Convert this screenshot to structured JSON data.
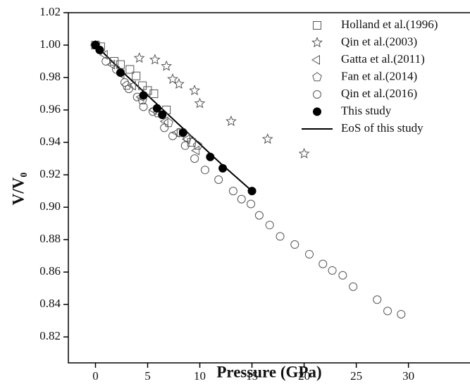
{
  "chart_data": {
    "type": "scatter",
    "xlabel": "Pressure (GPa)",
    "ylabel": "V/V₀",
    "xlim": [
      -2.6,
      35.9
    ],
    "ylim": [
      0.804,
      1.02
    ],
    "xticks": [
      0,
      5,
      10,
      15,
      20,
      25,
      30
    ],
    "yticks": [
      0.82,
      0.84,
      0.86,
      {
        "value": 0.88,
        "label": "0.88"
      },
      {
        "value": 0.9,
        "label": "0.90"
      },
      0.92,
      0.94,
      0.96,
      0.98,
      {
        "value": 1.0,
        "label": "1.00"
      },
      1.02
    ],
    "legend": "upper right",
    "series": [
      {
        "name": "Holland et al.(1996)",
        "marker": "square",
        "color": "#555555",
        "x": [
          0,
          0.5,
          1.8,
          2.4,
          3.3,
          3.9,
          4.5,
          5.0,
          5.6,
          6.8,
          8.2,
          9.2
        ],
        "values": [
          1.0,
          0.999,
          0.99,
          0.988,
          0.985,
          0.981,
          0.975,
          0.972,
          0.97,
          0.96,
          0.946,
          0.94
        ]
      },
      {
        "name": "Qin et al.(2003)",
        "marker": "star",
        "color": "#555555",
        "x": [
          4.2,
          5.7,
          6.8,
          7.4,
          8.0,
          9.5,
          10.0,
          13.0,
          16.5,
          20.0
        ],
        "values": [
          0.992,
          0.991,
          0.987,
          0.979,
          0.976,
          0.972,
          0.964,
          0.953,
          0.942,
          0.933
        ]
      },
      {
        "name": "Gatta et al.(2011)",
        "marker": "triangle-left",
        "color": "#555555",
        "x": [
          0,
          0.9,
          1.6,
          2.5,
          3.6,
          4.4,
          5.6,
          6.7,
          7.8,
          8.8,
          9.7
        ],
        "values": [
          1.0,
          0.994,
          0.988,
          0.982,
          0.975,
          0.968,
          0.96,
          0.953,
          0.946,
          0.942,
          0.935
        ]
      },
      {
        "name": "Fan et al.(2014)",
        "marker": "pentagon",
        "color": "#555555",
        "x": [
          0,
          3.0,
          4.5,
          6.0,
          7.0,
          8.8,
          9.8
        ],
        "values": [
          1.0,
          0.975,
          0.966,
          0.958,
          0.952,
          0.943,
          0.938
        ]
      },
      {
        "name": "Qin et al.(2016)",
        "marker": "circle",
        "color": "#555555",
        "x": [
          0,
          1.0,
          2.0,
          2.8,
          3.2,
          4.0,
          4.6,
          5.5,
          6.6,
          7.4,
          8.6,
          9.5,
          10.5,
          11.8,
          13.2,
          14.0,
          14.9,
          15.7,
          16.7,
          17.7,
          19.1,
          20.5,
          21.8,
          22.7,
          23.7,
          24.7,
          27.0,
          28.0,
          29.3
        ],
        "values": [
          1.0,
          0.99,
          0.985,
          0.977,
          0.973,
          0.968,
          0.962,
          0.959,
          0.949,
          0.944,
          0.938,
          0.93,
          0.923,
          0.917,
          0.91,
          0.905,
          0.902,
          0.895,
          0.889,
          0.882,
          0.877,
          0.871,
          0.865,
          0.861,
          0.858,
          0.851,
          0.843,
          0.836,
          0.834
        ]
      },
      {
        "name": "This study",
        "marker": "filled-circle",
        "color": "#000000",
        "x": [
          0,
          0.4,
          2.4,
          4.6,
          5.9,
          6.4,
          8.4,
          11.0,
          12.2,
          15.0
        ],
        "values": [
          1.0,
          0.997,
          0.983,
          0.969,
          0.961,
          0.957,
          0.946,
          0.931,
          0.924,
          0.91
        ]
      },
      {
        "name": "EoS of this study",
        "marker": "line",
        "color": "#000000",
        "x": [
          0,
          3,
          6,
          9,
          12,
          15
        ],
        "values": [
          1.0,
          0.981,
          0.963,
          0.945,
          0.927,
          0.91
        ]
      }
    ]
  }
}
